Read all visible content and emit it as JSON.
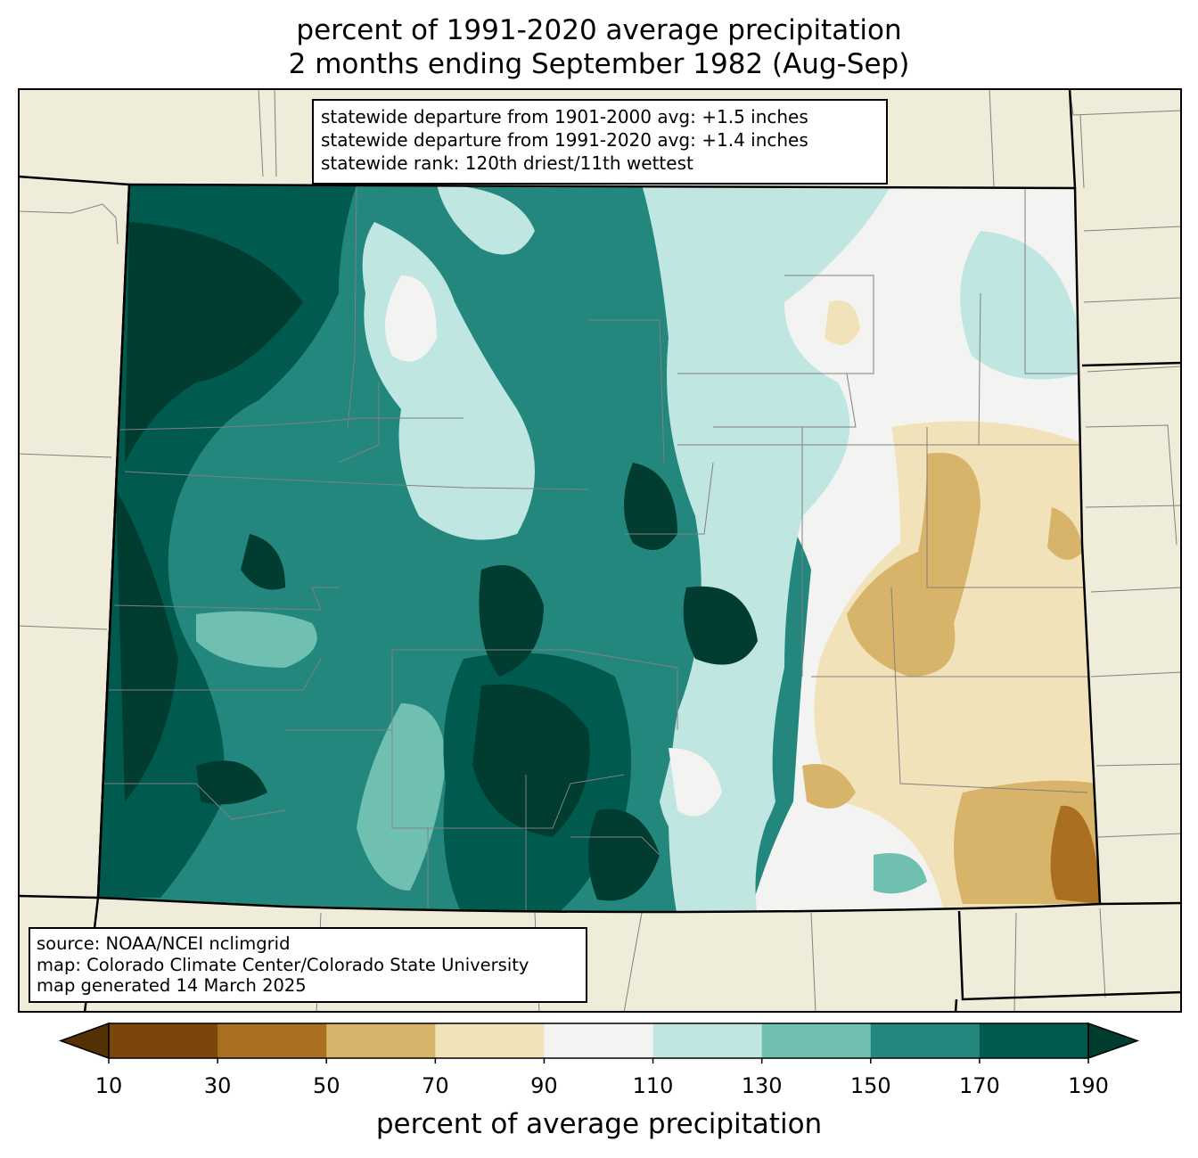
{
  "title": {
    "line1": "percent of 1991-2020 average precipitation",
    "line2": "2 months ending September 1982 (Aug-Sep)"
  },
  "stats": [
    "statewide departure from 1901-2000 avg: +1.5 inches",
    "statewide departure from 1991-2020 avg: +1.4 inches",
    "statewide rank: 120th driest/11th wettest"
  ],
  "credits": [
    "source: NOAA/NCEI nclimgrid",
    "map: Colorado Climate Center/Colorado State University",
    "map generated 14 March 2025"
  ],
  "colorbar": {
    "label": "percent of average precipitation",
    "ticks": [
      "10",
      "30",
      "50",
      "70",
      "90",
      "110",
      "130",
      "150",
      "170",
      "190"
    ],
    "under_color": "#543005",
    "over_color": "#003c30",
    "bins": [
      {
        "range": [
          10,
          30
        ],
        "color": "#7a460a"
      },
      {
        "range": [
          30,
          50
        ],
        "color": "#ab6f22"
      },
      {
        "range": [
          50,
          70
        ],
        "color": "#d8b46a"
      },
      {
        "range": [
          70,
          90
        ],
        "color": "#f2e2b9"
      },
      {
        "range": [
          90,
          110
        ],
        "color": "#f3f4f2"
      },
      {
        "range": [
          110,
          130
        ],
        "color": "#bfe6e0"
      },
      {
        "range": [
          130,
          150
        ],
        "color": "#70c0b2"
      },
      {
        "range": [
          150,
          170
        ],
        "color": "#23877e"
      },
      {
        "range": [
          170,
          190
        ],
        "color": "#005a4e"
      }
    ]
  },
  "colors": {
    "land_outside": "#efedda",
    "state_border": "#000000",
    "county_lines": "#808080"
  }
}
